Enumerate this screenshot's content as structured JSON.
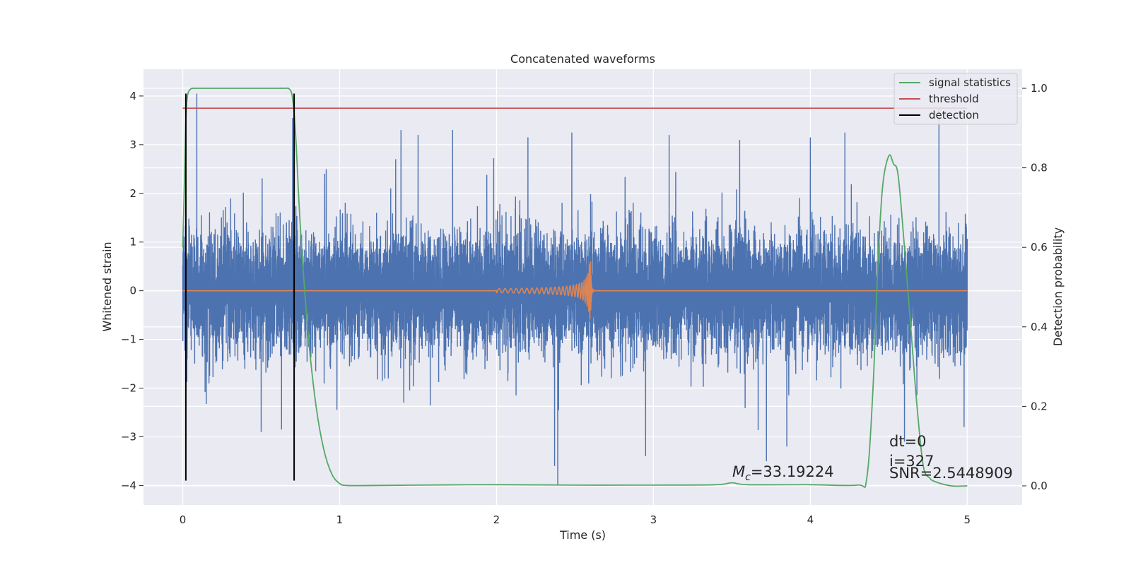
{
  "chart_data": {
    "type": "line",
    "title": "Concatenated waveforms",
    "xlabel": "Time (s)",
    "ylabel": "Whitened strain",
    "y2label": "Detection probability",
    "xlim": [
      -0.25,
      5.35
    ],
    "ylim": [
      -4.4,
      4.55
    ],
    "y2lim": [
      -0.048,
      1.048
    ],
    "xticks": [
      0,
      1,
      2,
      3,
      4,
      5
    ],
    "yticks": [
      -4,
      -3,
      -2,
      -1,
      0,
      1,
      2,
      3,
      4
    ],
    "y2ticks": [
      0.0,
      0.2,
      0.4,
      0.6,
      0.8,
      1.0
    ],
    "grid": true,
    "legend_position": "top-right",
    "legend": [
      "signal statistics",
      "threshold",
      "detection"
    ],
    "colors": {
      "strain": "#4c72b0",
      "waveform": "#dd8452",
      "signal_statistics": "#55a868",
      "threshold": "#c44e52",
      "detection": "#000000",
      "background": "#eaeaf2"
    },
    "annotations": {
      "mc": "=33.19224",
      "dt": "dt=0",
      "i": "i=327",
      "snr": "SNR=2.5448909"
    },
    "series": [
      {
        "name": "signal statistics",
        "axis": "right",
        "x": [
          0.0,
          0.01,
          0.02,
          0.03,
          0.05,
          0.08,
          0.12,
          0.2,
          0.4,
          0.6,
          0.65,
          0.68,
          0.7,
          0.72,
          0.75,
          0.8,
          0.85,
          0.9,
          0.95,
          1.0,
          1.05,
          1.2,
          1.5,
          2.0,
          2.5,
          3.0,
          3.4,
          3.5,
          3.6,
          4.0,
          4.3,
          4.36,
          4.4,
          4.43,
          4.46,
          4.5,
          4.53,
          4.56,
          4.6,
          4.64,
          4.68,
          4.72,
          4.76,
          4.8,
          4.9,
          5.0
        ],
        "values": [
          0.6,
          0.75,
          0.92,
          0.98,
          0.998,
          1.0,
          1.0,
          1.0,
          1.0,
          1.0,
          1.0,
          0.998,
          0.975,
          0.88,
          0.65,
          0.38,
          0.2,
          0.09,
          0.03,
          0.006,
          0.001,
          0.001,
          0.002,
          0.003,
          0.002,
          0.002,
          0.003,
          0.008,
          0.003,
          0.003,
          0.002,
          0.02,
          0.25,
          0.55,
          0.75,
          0.83,
          0.81,
          0.78,
          0.6,
          0.4,
          0.2,
          0.05,
          0.02,
          0.01,
          0.0,
          0.0
        ]
      },
      {
        "name": "threshold",
        "axis": "right",
        "x": [
          0.0,
          5.0
        ],
        "values": [
          0.95,
          0.95
        ]
      },
      {
        "name": "detection",
        "axis": "left",
        "type": "vlines",
        "x": [
          0.02,
          0.71
        ],
        "ymin": -3.9,
        "ymax": 4.05
      },
      {
        "name": "",
        "axis": "left",
        "type": "noise",
        "x_start": 0.0,
        "x_end": 5.0,
        "sample_rate": 2048,
        "typical_range": [
          -1.3,
          1.3
        ],
        "peaks": [
          {
            "x": 0.09,
            "y": 4.05
          },
          {
            "x": 0.7,
            "y": 3.55
          },
          {
            "x": 1.5,
            "y": 3.2
          },
          {
            "x": 1.72,
            "y": 3.3
          },
          {
            "x": 2.2,
            "y": 3.15
          },
          {
            "x": 2.48,
            "y": 3.25
          },
          {
            "x": 3.1,
            "y": 3.2
          },
          {
            "x": 3.55,
            "y": 3.1
          },
          {
            "x": 4.0,
            "y": 3.15
          },
          {
            "x": 4.22,
            "y": 3.25
          },
          {
            "x": 4.82,
            "y": 3.75
          },
          {
            "x": 0.5,
            "y": -2.9
          },
          {
            "x": 0.63,
            "y": -2.85
          },
          {
            "x": 2.37,
            "y": -3.6
          },
          {
            "x": 2.39,
            "y": -4.0
          },
          {
            "x": 2.95,
            "y": -3.4
          },
          {
            "x": 3.72,
            "y": -3.5
          },
          {
            "x": 3.85,
            "y": -3.2
          },
          {
            "x": 4.6,
            "y": -3.1
          },
          {
            "x": 4.98,
            "y": -2.8
          }
        ]
      },
      {
        "name": "",
        "axis": "left",
        "type": "chirp",
        "x_start": 0.0,
        "x_end": 5.0,
        "chirp_start": 2.0,
        "merger": 2.6,
        "peak_amplitude": 0.6
      }
    ]
  }
}
